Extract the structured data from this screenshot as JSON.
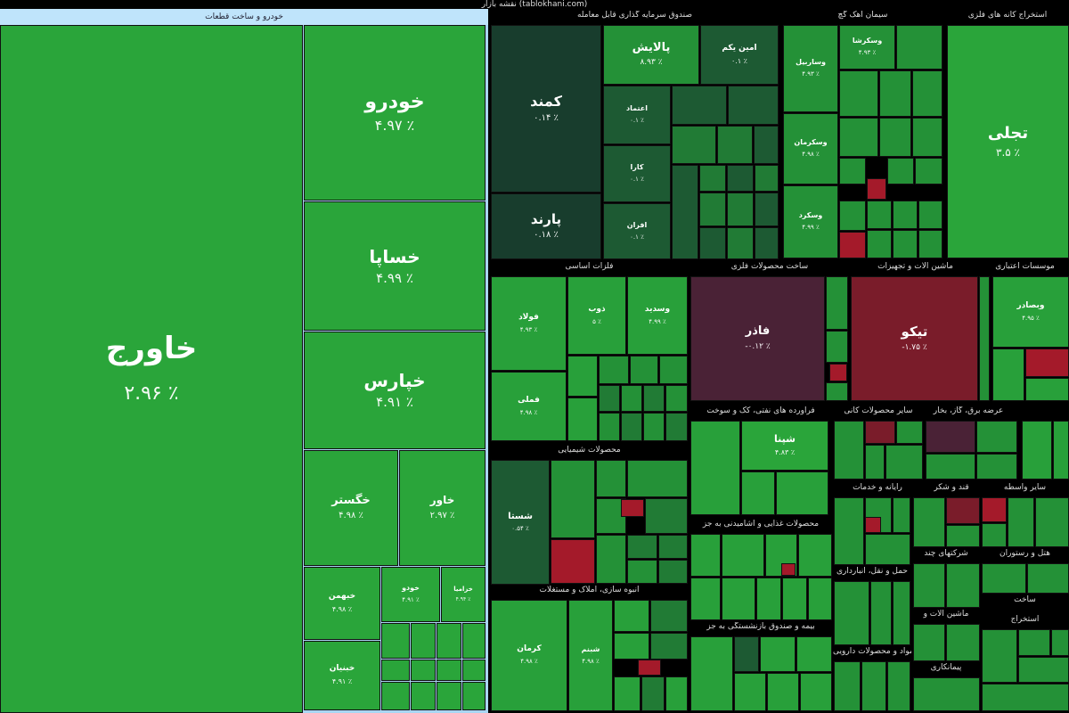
{
  "site_title": "نقشه بازار (tablokhani.com)",
  "left_header": "خودرو و ساخت قطعات",
  "left_tiles": [
    {
      "name": "خاورج",
      "pct": "۲.۹۶ ٪"
    },
    {
      "name": "خودرو",
      "pct": "۴.۹۷ ٪"
    },
    {
      "name": "خساپا",
      "pct": "۴.۹۹ ٪"
    },
    {
      "name": "خپارس",
      "pct": "۴.۹۱ ٪"
    },
    {
      "name": "خگستر",
      "pct": "۴.۹۸ ٪"
    },
    {
      "name": "خاور",
      "pct": "۲.۹۷ ٪"
    },
    {
      "name": "خبهمن",
      "pct": "۴.۹۸ ٪"
    },
    {
      "name": "خودو",
      "pct": "۴.۹۱ ٪"
    },
    {
      "name": "خزامیا",
      "pct": "۴.۹۴ ٪"
    },
    {
      "name": "خبنیان",
      "pct": "۴.۹۱ ٪"
    }
  ],
  "sections": [
    "صندوق سرمایه گذاری قابل معامله",
    "سیمان آهک گچ",
    "استخراج کانه های فلزی",
    "فلزات اساسی",
    "ساخت محصولات فلزی",
    "ماشین آلات و تجهیزات",
    "موسسات اعتباری",
    "محصولات شیمیایی",
    "فرآورده های نفتی، کک و سوخت",
    "سایر محصولات کانی",
    "عرضه برق، گاز، بخار",
    "رایانه و خدمات",
    "قند و شکر",
    "سایر واسطه",
    "محصولات غذایی و آشامیدنی به جز",
    "انبوه سازی، املاک و مستغلات",
    "حمل و نقل، انبارداری",
    "شرکتهای چند",
    "هتل و رستوران",
    "بیمه و صندوق بازنشستگی به جز",
    "مواد و محصولات دارویی",
    "ماشین آلات و",
    "ساخت",
    "استخراج",
    "پیمانکاری"
  ],
  "tiles": {
    "palayesh": {
      "name": "پالایش",
      "pct": "۸.۹۳ ٪"
    },
    "amin_yekom": {
      "name": "امین یکم",
      "pct": "۰.۱ ٪"
    },
    "kamand": {
      "name": "کمند",
      "pct": "۰.۱۴ ٪"
    },
    "parand": {
      "name": "پارند",
      "pct": "۰.۱۸ ٪"
    },
    "etemad": {
      "name": "اعتماد",
      "pct": "۰.۱ ٪"
    },
    "kara": {
      "name": "کارا",
      "pct": "۰.۱ ٪"
    },
    "afran": {
      "name": "افران",
      "pct": "۰.۱ ٪"
    },
    "tajli": {
      "name": "تجلی",
      "pct": "۳.۵ ٪"
    },
    "vaskrasha": {
      "name": "وسکرشا",
      "pct": "۴.۹۳ ٪"
    },
    "vaarbil": {
      "name": "وساربیل",
      "pct": "۴.۹۳ ٪"
    },
    "vaskerman": {
      "name": "وسکرمان",
      "pct": "۴.۹۸ ٪"
    },
    "vaskerd": {
      "name": "وسکرد",
      "pct": "۴.۹۹ ٪"
    },
    "foolad": {
      "name": "فولاد",
      "pct": "۴.۹۳ ٪"
    },
    "zob": {
      "name": "ذوب",
      "pct": "۵ ٪"
    },
    "vasmid": {
      "name": "وسدید",
      "pct": "۴.۹۹ ٪"
    },
    "fameli": {
      "name": "فملی",
      "pct": "۴.۹۸ ٪"
    },
    "fasir": {
      "name": "فاذر",
      "pct": "-۰.۱۲ ٪"
    },
    "tikvo": {
      "name": "تیکو",
      "pct": "-۱.۷۵ ٪"
    },
    "vabsader": {
      "name": "وبصادر",
      "pct": "۴.۹۵ ٪"
    },
    "shasta": {
      "name": "شستا",
      "pct": "۰.۵۴ ٪"
    },
    "shapna": {
      "name": "شپنا",
      "pct": "۴.۸۳ ٪"
    },
    "kerman": {
      "name": "کرمان",
      "pct": "۴.۹۸ ٪"
    },
    "sabd": {
      "name": "شبنم",
      "pct": "۴.۹۸ ٪"
    }
  }
}
